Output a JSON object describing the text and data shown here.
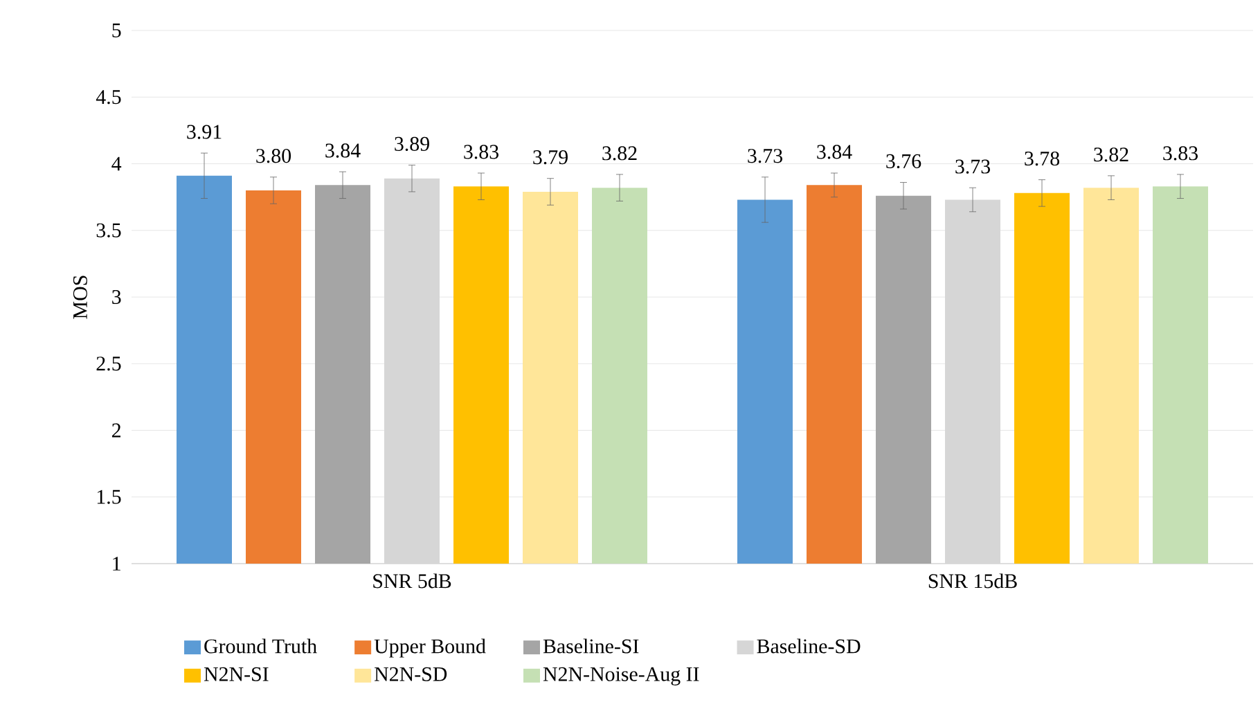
{
  "chart_data": {
    "type": "bar",
    "ylabel": "MOS",
    "categories": [
      "SNR 5dB",
      "SNR 15dB"
    ],
    "series": [
      {
        "name": "Ground Truth",
        "color": "#5b9bd5",
        "values": [
          3.91,
          3.73
        ],
        "errors": [
          0.17,
          0.17
        ],
        "value_labels": [
          "3.91",
          "3.73"
        ]
      },
      {
        "name": "Upper Bound",
        "color": "#ed7d31",
        "values": [
          3.8,
          3.84
        ],
        "errors": [
          0.1,
          0.09
        ],
        "value_labels": [
          "3.80",
          "3.84"
        ]
      },
      {
        "name": "Baseline-SI",
        "color": "#a5a5a5",
        "values": [
          3.84,
          3.76
        ],
        "errors": [
          0.1,
          0.1
        ],
        "value_labels": [
          "3.84",
          "3.76"
        ]
      },
      {
        "name": "Baseline-SD",
        "color": "#d6d6d6",
        "values": [
          3.89,
          3.73
        ],
        "errors": [
          0.1,
          0.09
        ],
        "value_labels": [
          "3.89",
          "3.73"
        ]
      },
      {
        "name": "N2N-SI",
        "color": "#ffc000",
        "values": [
          3.83,
          3.78
        ],
        "errors": [
          0.1,
          0.1
        ],
        "value_labels": [
          "3.83",
          "3.78"
        ]
      },
      {
        "name": "N2N-SD",
        "color": "#ffe699",
        "values": [
          3.79,
          3.82
        ],
        "errors": [
          0.1,
          0.09
        ],
        "value_labels": [
          "3.79",
          "3.82"
        ]
      },
      {
        "name": "N2N-Noise-Aug II",
        "color": "#c5e0b4",
        "values": [
          3.82,
          3.83
        ],
        "errors": [
          0.1,
          0.09
        ],
        "value_labels": [
          "3.82",
          "3.83"
        ]
      }
    ],
    "ylim": [
      1,
      5
    ],
    "yticks": [
      1,
      1.5,
      2,
      2.5,
      3,
      3.5,
      4,
      4.5,
      5
    ],
    "grid": "y",
    "legend": "bottom"
  }
}
